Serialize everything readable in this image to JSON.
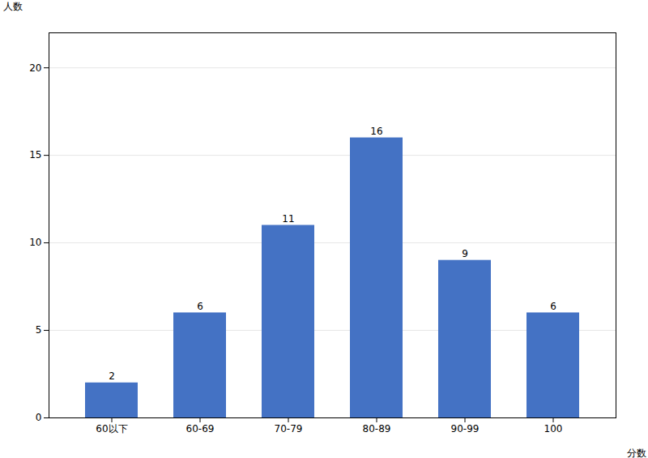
{
  "chart_data": {
    "type": "bar",
    "categories": [
      "60以下",
      "60-69",
      "70-79",
      "80-89",
      "90-99",
      "100"
    ],
    "values": [
      2,
      6,
      11,
      16,
      9,
      6
    ],
    "color": "#4472c4",
    "xlabel": "分数",
    "ylabel": "人数",
    "ylim": [
      0,
      22
    ],
    "yticks": [
      0,
      5,
      10,
      15,
      20
    ],
    "grid": true,
    "data_labels": true
  }
}
